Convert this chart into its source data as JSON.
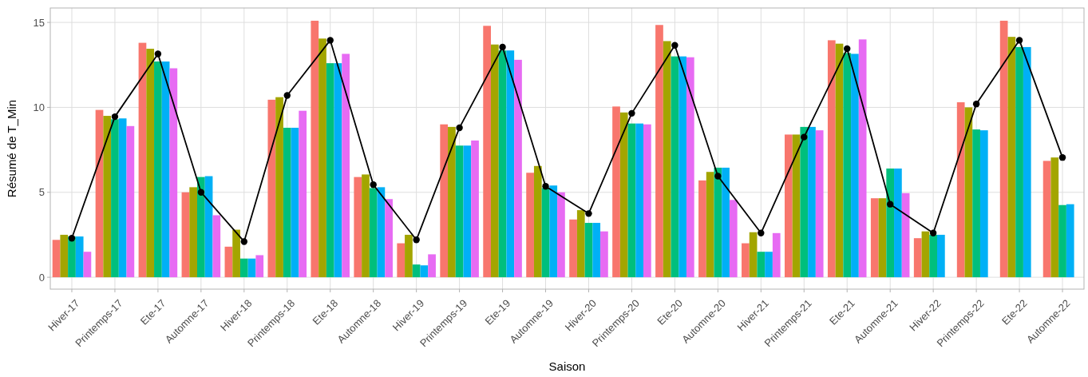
{
  "chart_data": {
    "type": "bar",
    "xlabel": "Saison",
    "ylabel": "Résumé de T_Min",
    "categories": [
      "Hiver-17",
      "Printemps-17",
      "Ete-17",
      "Automne-17",
      "Hiver-18",
      "Printemps-18",
      "Ete-18",
      "Automne-18",
      "Hiver-19",
      "Printemps-19",
      "Ete-19",
      "Automne-19",
      "Hiver-20",
      "Printemps-20",
      "Ete-20",
      "Automne-20",
      "Hiver-21",
      "Printemps-21",
      "Ete-21",
      "Automne-21",
      "Hiver-22",
      "Printemps-22",
      "Ete-22",
      "Automne-22"
    ],
    "series": [
      {
        "color": "#f8766d",
        "values": [
          2.2,
          9.85,
          13.8,
          5.0,
          1.8,
          10.45,
          15.1,
          5.9,
          2.0,
          9.0,
          14.8,
          6.15,
          3.4,
          10.05,
          14.85,
          5.7,
          2.0,
          8.4,
          13.95,
          4.65,
          2.3,
          10.3,
          15.1,
          6.85
        ]
      },
      {
        "color": "#a3a500",
        "values": [
          2.5,
          9.5,
          13.45,
          5.3,
          2.8,
          10.6,
          14.05,
          6.05,
          2.5,
          8.85,
          13.7,
          6.55,
          3.95,
          9.7,
          13.9,
          6.2,
          2.65,
          8.4,
          13.75,
          4.65,
          2.7,
          10.0,
          14.15,
          7.05
        ]
      },
      {
        "color": "#00bf7d",
        "values": [
          2.4,
          9.3,
          12.7,
          5.9,
          1.1,
          8.8,
          12.6,
          5.25,
          0.75,
          7.75,
          13.35,
          5.25,
          3.2,
          9.05,
          13.0,
          6.45,
          1.5,
          8.85,
          13.2,
          6.4,
          2.5,
          8.7,
          13.55,
          4.25
        ]
      },
      {
        "color": "#00b0f6",
        "values": [
          2.4,
          9.35,
          12.7,
          5.95,
          1.1,
          8.8,
          12.6,
          5.3,
          0.7,
          7.75,
          13.35,
          5.4,
          3.2,
          9.05,
          13.0,
          6.45,
          1.5,
          8.85,
          13.15,
          6.4,
          2.5,
          8.65,
          13.55,
          4.3
        ]
      },
      {
        "color": "#e76bf3",
        "values": [
          1.5,
          8.9,
          12.3,
          3.65,
          1.3,
          9.8,
          13.15,
          4.6,
          1.35,
          8.05,
          12.8,
          5.0,
          2.7,
          9.0,
          12.95,
          4.55,
          2.6,
          8.65,
          14.0,
          4.95,
          null,
          null,
          null,
          null
        ]
      },
      {
        "type": "line",
        "color": "#000000",
        "values": [
          2.3,
          9.45,
          13.15,
          5.0,
          2.1,
          10.7,
          13.95,
          5.45,
          2.2,
          8.8,
          13.55,
          5.35,
          3.75,
          9.65,
          13.65,
          5.95,
          2.6,
          8.25,
          13.45,
          4.3,
          2.6,
          10.2,
          13.95,
          7.05
        ]
      }
    ],
    "ylim": [
      -0.7,
      15.85
    ],
    "yticks": [
      0,
      5,
      10,
      15
    ],
    "grid": true,
    "marker": "circle",
    "line_style": "solid"
  }
}
